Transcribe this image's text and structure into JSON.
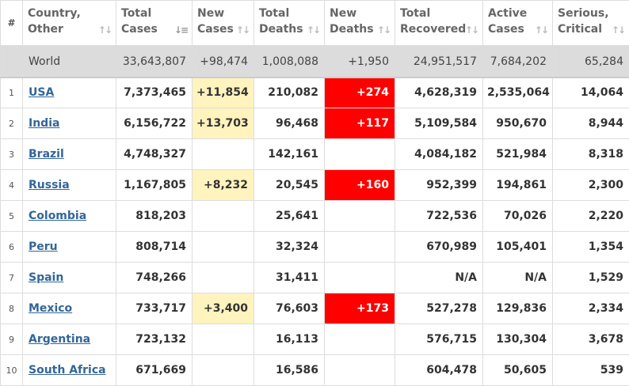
{
  "headers": [
    {
      "id": "index",
      "line1": "#",
      "line2": ""
    },
    {
      "id": "country",
      "line1": "Country,",
      "line2": "Other"
    },
    {
      "id": "total_cases",
      "line1": "Total",
      "line2": "Cases"
    },
    {
      "id": "new_cases",
      "line1": "New",
      "line2": "Cases"
    },
    {
      "id": "total_deaths",
      "line1": "Total",
      "line2": "Deaths"
    },
    {
      "id": "new_deaths",
      "line1": "New",
      "line2": "Deaths"
    },
    {
      "id": "total_recovered",
      "line1": "Total",
      "line2": "Recovered"
    },
    {
      "id": "active_cases",
      "line1": "Active",
      "line2": "Cases"
    },
    {
      "id": "serious_critical",
      "line1": "Serious,",
      "line2": "Critical"
    }
  ],
  "sorted_column": "total_cases",
  "world": {
    "name": "World",
    "total_cases": "33,643,807",
    "new_cases": "+98,474",
    "total_deaths": "1,008,088",
    "new_deaths": "+1,950",
    "total_recovered": "24,951,517",
    "active_cases": "7,684,202",
    "serious_critical": "65,284"
  },
  "rows": [
    {
      "index": "1",
      "country": "USA",
      "total_cases": "7,373,465",
      "new_cases": "+11,854",
      "total_deaths": "210,082",
      "new_deaths": "+274",
      "total_recovered": "4,628,319",
      "active_cases": "2,535,064",
      "serious_critical": "14,064"
    },
    {
      "index": "2",
      "country": "India",
      "total_cases": "6,156,722",
      "new_cases": "+13,703",
      "total_deaths": "96,468",
      "new_deaths": "+117",
      "total_recovered": "5,109,584",
      "active_cases": "950,670",
      "serious_critical": "8,944"
    },
    {
      "index": "3",
      "country": "Brazil",
      "total_cases": "4,748,327",
      "new_cases": "",
      "total_deaths": "142,161",
      "new_deaths": "",
      "total_recovered": "4,084,182",
      "active_cases": "521,984",
      "serious_critical": "8,318"
    },
    {
      "index": "4",
      "country": "Russia",
      "total_cases": "1,167,805",
      "new_cases": "+8,232",
      "total_deaths": "20,545",
      "new_deaths": "+160",
      "total_recovered": "952,399",
      "active_cases": "194,861",
      "serious_critical": "2,300"
    },
    {
      "index": "5",
      "country": "Colombia",
      "total_cases": "818,203",
      "new_cases": "",
      "total_deaths": "25,641",
      "new_deaths": "",
      "total_recovered": "722,536",
      "active_cases": "70,026",
      "serious_critical": "2,220"
    },
    {
      "index": "6",
      "country": "Peru",
      "total_cases": "808,714",
      "new_cases": "",
      "total_deaths": "32,324",
      "new_deaths": "",
      "total_recovered": "670,989",
      "active_cases": "105,401",
      "serious_critical": "1,354"
    },
    {
      "index": "7",
      "country": "Spain",
      "total_cases": "748,266",
      "new_cases": "",
      "total_deaths": "31,411",
      "new_deaths": "",
      "total_recovered": "N/A",
      "active_cases": "N/A",
      "serious_critical": "1,529"
    },
    {
      "index": "8",
      "country": "Mexico",
      "total_cases": "733,717",
      "new_cases": "+3,400",
      "total_deaths": "76,603",
      "new_deaths": "+173",
      "total_recovered": "527,278",
      "active_cases": "129,836",
      "serious_critical": "2,334"
    },
    {
      "index": "9",
      "country": "Argentina",
      "total_cases": "723,132",
      "new_cases": "",
      "total_deaths": "16,113",
      "new_deaths": "",
      "total_recovered": "576,715",
      "active_cases": "130,304",
      "serious_critical": "3,678"
    },
    {
      "index": "10",
      "country": "South Africa",
      "total_cases": "671,669",
      "new_cases": "",
      "total_deaths": "16,586",
      "new_deaths": "",
      "total_recovered": "604,478",
      "active_cases": "50,605",
      "serious_critical": "539"
    }
  ],
  "colors": {
    "new_cases_highlight": "#fff3be",
    "new_deaths_highlight": "#ff0000",
    "country_link": "#336699",
    "world_row_bg": "#dcdcdc"
  },
  "icons": {
    "sort_default": "sort-arrows-icon",
    "sort_active": "sort-descending-icon"
  }
}
